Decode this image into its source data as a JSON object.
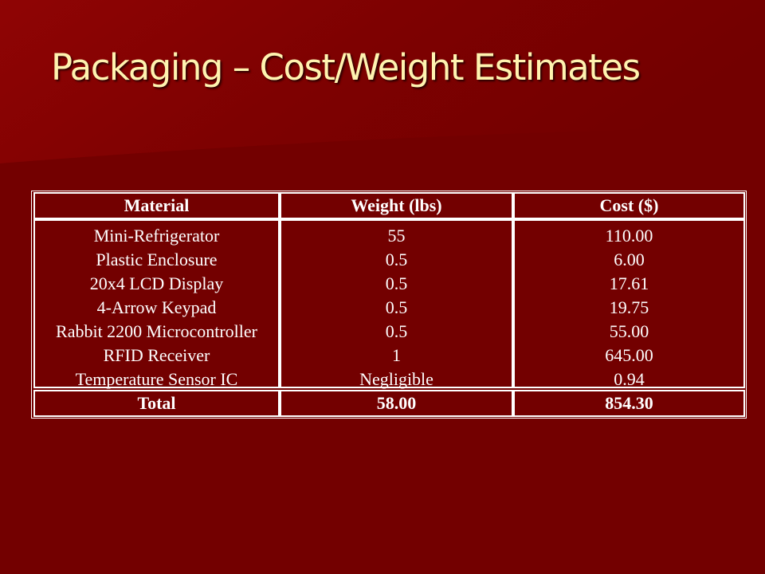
{
  "slide": {
    "title": "Packaging – Cost/Weight Estimates",
    "background_color": "#730000",
    "title_color": "#FFF3B0"
  },
  "table": {
    "headers": {
      "material": "Material",
      "weight": "Weight (lbs)",
      "cost": "Cost ($)"
    },
    "rows": [
      {
        "material": "Mini-Refrigerator",
        "weight": "55",
        "cost": "110.00"
      },
      {
        "material": "Plastic Enclosure",
        "weight": "0.5",
        "cost": "6.00"
      },
      {
        "material": "20x4 LCD Display",
        "weight": "0.5",
        "cost": "17.61"
      },
      {
        "material": "4-Arrow Keypad",
        "weight": "0.5",
        "cost": "19.75"
      },
      {
        "material": "Rabbit 2200 Microcontroller",
        "weight": "0.5",
        "cost": "55.00"
      },
      {
        "material": "RFID Receiver",
        "weight": "1",
        "cost": "645.00"
      },
      {
        "material": "Temperature Sensor IC",
        "weight": "Negligible",
        "cost": "0.94"
      }
    ],
    "total": {
      "label": "Total",
      "weight": "58.00",
      "cost": "854.30"
    }
  }
}
